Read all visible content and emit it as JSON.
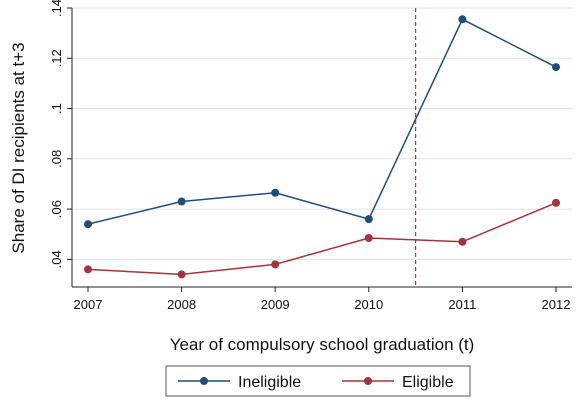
{
  "chart_data": {
    "type": "line",
    "x": [
      2007,
      2008,
      2009,
      2010,
      2011,
      2012
    ],
    "series": [
      {
        "name": "Ineligible",
        "color": "#1f4e79",
        "values": [
          0.054,
          0.063,
          0.0665,
          0.056,
          0.1355,
          0.1165
        ]
      },
      {
        "name": "Eligible",
        "color": "#a3333d",
        "values": [
          0.036,
          0.034,
          0.038,
          0.0485,
          0.047,
          0.0625
        ]
      }
    ],
    "xlabel": "Year of compulsory school graduation (t)",
    "ylabel": "Share of DI recipients at t+3",
    "xticks": [
      "2007",
      "2008",
      "2009",
      "2010",
      "2011",
      "2012"
    ],
    "yticks": [
      ".04",
      ".06",
      ".08",
      ".1",
      ".12",
      ".14"
    ],
    "ytick_values": [
      0.04,
      0.06,
      0.08,
      0.1,
      0.12,
      0.14
    ],
    "xlim": [
      2007,
      2012
    ],
    "ylim": [
      0.029,
      0.14
    ],
    "grid": true,
    "vline": {
      "x": 2010.5,
      "style": "dashed",
      "color": "#c0392b"
    },
    "legend_position": "bottom"
  }
}
